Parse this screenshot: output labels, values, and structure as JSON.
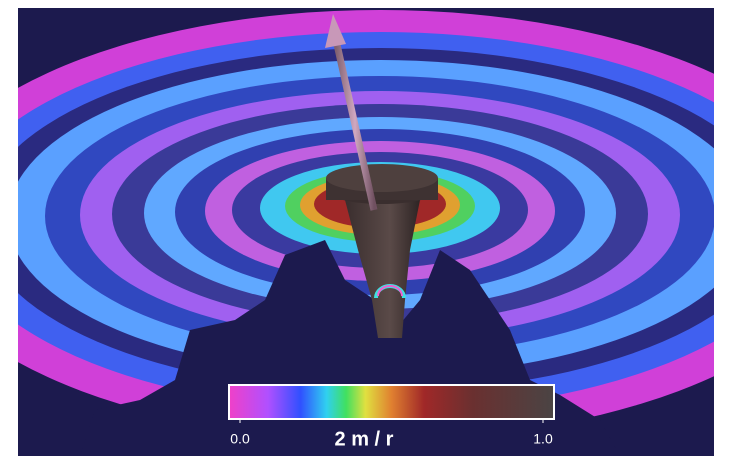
{
  "colorbar": {
    "label": "2 m / r",
    "lim": [
      0,
      1
    ],
    "ticks": [
      {
        "value": 0,
        "label": "0.0"
      },
      {
        "value": 1,
        "label": "1.0"
      }
    ]
  }
}
